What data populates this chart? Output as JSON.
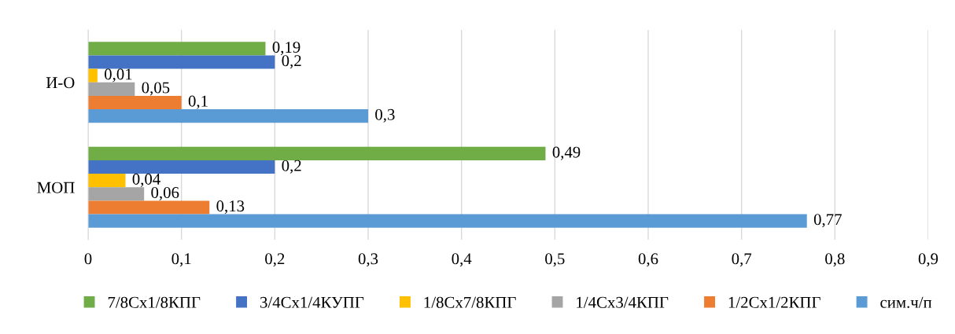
{
  "chart_data": {
    "type": "bar",
    "orientation": "horizontal",
    "categories": [
      "И-О",
      "МОП"
    ],
    "series": [
      {
        "name": "7/8Сх1/8КПГ",
        "color": "#70ad47",
        "values": [
          0.19,
          0.49
        ],
        "value_labels": [
          "0,19",
          "0,49"
        ]
      },
      {
        "name": "3/4Сх1/4КУПГ",
        "color": "#4472c4",
        "values": [
          0.2,
          0.2
        ],
        "value_labels": [
          "0,2",
          "0,2"
        ]
      },
      {
        "name": "1/8Сх7/8КПГ",
        "color": "#ffc000",
        "values": [
          0.01,
          0.04
        ],
        "value_labels": [
          "0,01",
          "0,04"
        ]
      },
      {
        "name": "1/4Сх3/4КПГ",
        "color": "#a5a5a5",
        "values": [
          0.05,
          0.06
        ],
        "value_labels": [
          "0,05",
          "0,06"
        ]
      },
      {
        "name": "1/2Сх1/2КПГ",
        "color": "#ed7d31",
        "values": [
          0.1,
          0.13
        ],
        "value_labels": [
          "0,1",
          "0,13"
        ]
      },
      {
        "name": "сим.ч/п",
        "color": "#5b9bd5",
        "values": [
          0.3,
          0.77
        ],
        "value_labels": [
          "0,3",
          "0,77"
        ]
      }
    ],
    "xlim": [
      0,
      0.9
    ],
    "xticks": [
      0,
      {
        "value": 0.1,
        "label": "0,1"
      },
      {
        "value": 0.2,
        "label": "0,2"
      },
      {
        "value": 0.3,
        "label": "0,3"
      },
      {
        "value": 0.4,
        "label": "0,4"
      },
      {
        "value": 0.5,
        "label": "0,5"
      },
      {
        "value": 0.6,
        "label": "0,6"
      },
      {
        "value": 0.7,
        "label": "0,7"
      },
      {
        "value": 0.8,
        "label": "0,8"
      },
      {
        "value": 0.9,
        "label": "0,9"
      }
    ],
    "grid": "x",
    "legend": "bottom"
  }
}
